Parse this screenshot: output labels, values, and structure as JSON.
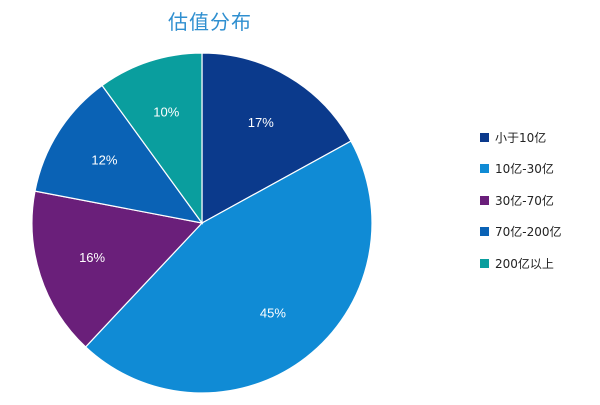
{
  "chart_data": {
    "type": "pie",
    "title": "估值分布",
    "categories": [
      "小于10亿",
      "10亿-30亿",
      "30亿-70亿",
      "70亿-200亿",
      "200亿以上"
    ],
    "values": [
      17,
      45,
      16,
      12,
      10
    ],
    "labels": [
      "17%",
      "45%",
      "16%",
      "12%",
      "10%"
    ],
    "colors": [
      "#0b3a8c",
      "#108bd5",
      "#6a1f7a",
      "#0a62b5",
      "#0a9e9e"
    ],
    "legend_position": "right"
  }
}
